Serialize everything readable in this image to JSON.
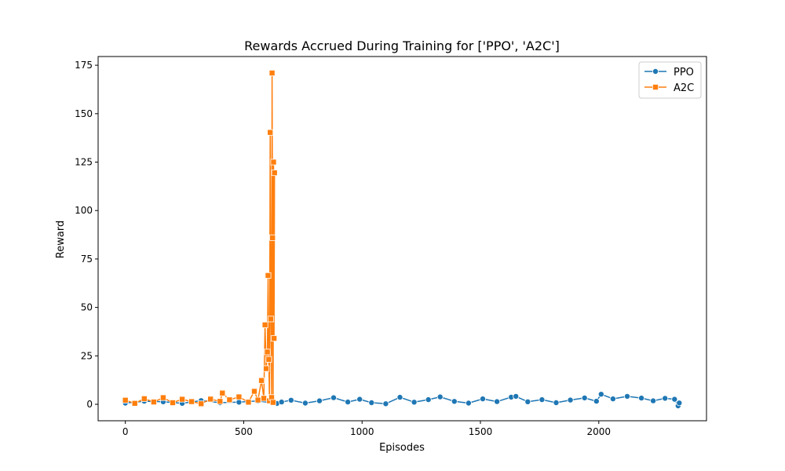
{
  "chart_data": {
    "type": "line",
    "title": "Rewards Accrued During Training for ['PPO', 'A2C']",
    "xlabel": "Episodes",
    "ylabel": "Reward",
    "xlim": [
      -115,
      2455
    ],
    "ylim": [
      -8.5,
      179.5
    ],
    "xticks": [
      0,
      500,
      1000,
      1500,
      2000
    ],
    "yticks": [
      0,
      25,
      50,
      75,
      100,
      125,
      150,
      175
    ],
    "grid": false,
    "legend_position": "top-right",
    "series": [
      {
        "name": "PPO",
        "color": "#1f77b4",
        "marker": "circle",
        "x": [
          0,
          80,
          160,
          240,
          320,
          400,
          480,
          560,
          640,
          660,
          700,
          760,
          820,
          880,
          940,
          990,
          1040,
          1100,
          1160,
          1220,
          1280,
          1330,
          1390,
          1450,
          1510,
          1570,
          1630,
          1650,
          1700,
          1760,
          1820,
          1880,
          1940,
          1990,
          2010,
          2060,
          2120,
          2180,
          2230,
          2280,
          2320,
          2335,
          2340
        ],
        "y": [
          0.6,
          1.6,
          1.3,
          0.5,
          1.9,
          0.8,
          1.1,
          1.7,
          0.4,
          1.2,
          2.1,
          0.6,
          1.8,
          3.4,
          1.2,
          2.6,
          0.8,
          0.3,
          3.6,
          1.1,
          2.4,
          3.8,
          1.5,
          0.6,
          2.8,
          1.4,
          3.7,
          4.1,
          1.3,
          2.4,
          0.8,
          2.2,
          3.3,
          1.6,
          5.2,
          2.8,
          4.1,
          3.2,
          1.8,
          3.1,
          2.6,
          -0.8,
          0.7
        ]
      },
      {
        "name": "A2C",
        "color": "#ff7f0e",
        "marker": "square",
        "x": [
          0,
          40,
          80,
          120,
          160,
          200,
          240,
          280,
          320,
          360,
          400,
          410,
          440,
          480,
          520,
          545,
          560,
          575,
          585,
          590,
          595,
          600,
          603,
          606,
          609,
          612,
          615,
          618,
          620,
          622,
          624,
          626,
          628,
          630
        ],
        "y": [
          2.1,
          0.5,
          2.9,
          1.2,
          3.4,
          0.8,
          2.6,
          1.4,
          0.3,
          2.7,
          1.5,
          5.8,
          2.3,
          3.8,
          1.1,
          6.7,
          2.2,
          12.3,
          3.1,
          41.0,
          18.4,
          27.0,
          66.5,
          23.2,
          1.8,
          140.3,
          44.0,
          3.5,
          171.0,
          86.0,
          1.0,
          125.0,
          34.0,
          119.5
        ]
      }
    ]
  }
}
